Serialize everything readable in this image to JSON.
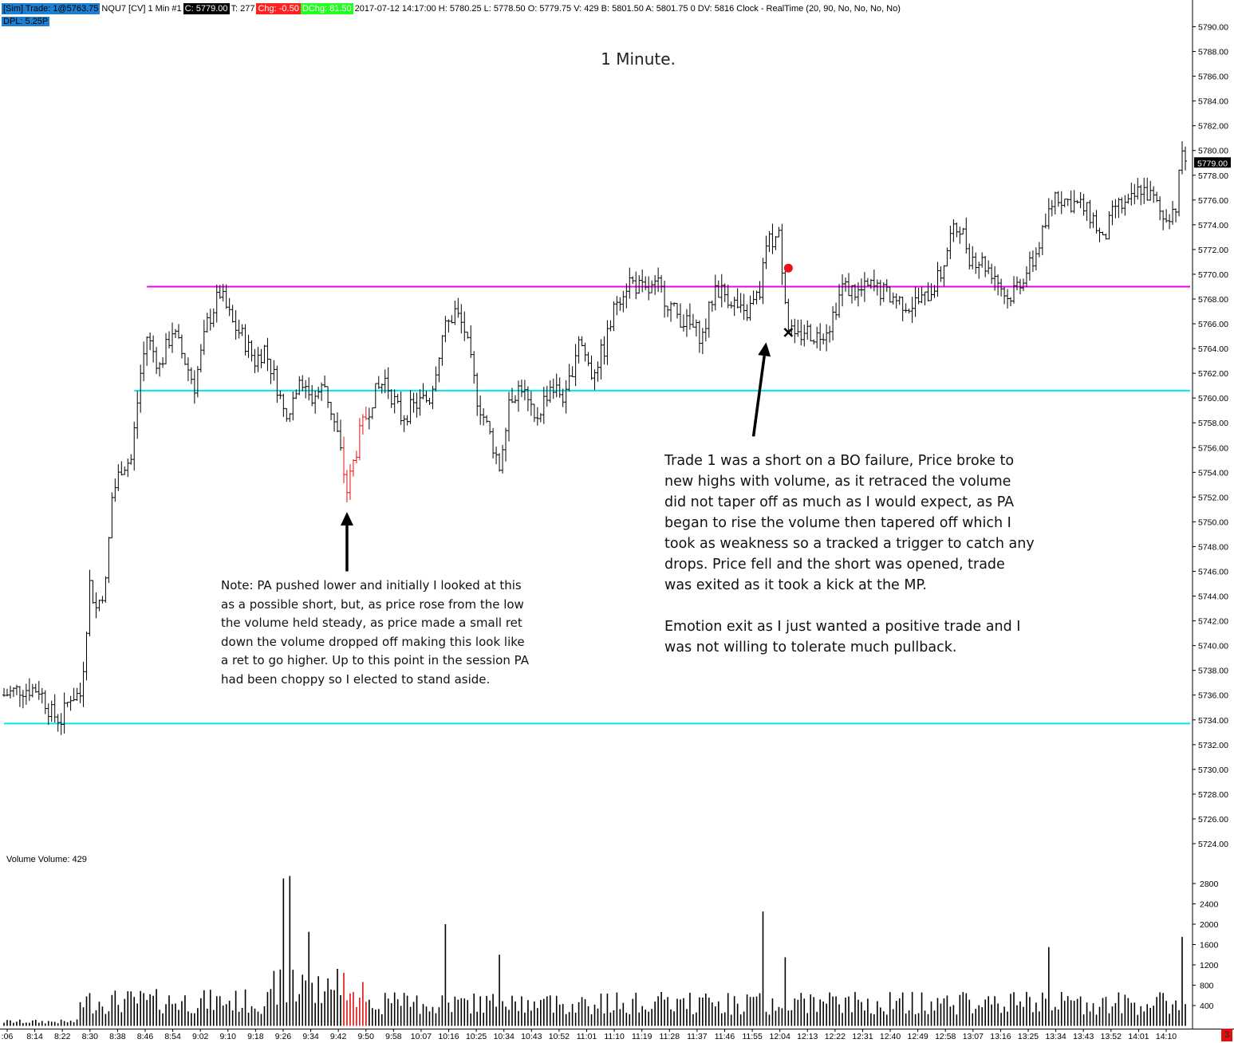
{
  "header": {
    "items": [
      {
        "text": "[Sim]  Trade: 1@5763.75",
        "bg": "#1e7fd0",
        "fg": "#000000"
      },
      {
        "text": "NQU7 [CV]  1 Min   #1",
        "bg": "#ffffff",
        "fg": "#000000"
      },
      {
        "text": "C: 5779.00",
        "bg": "#000000",
        "fg": "#ffffff"
      },
      {
        "text": "T: 277",
        "bg": "#ffffff",
        "fg": "#000000"
      },
      {
        "text": "Chg: -0.50",
        "bg": "#ff2020",
        "fg": "#ffffff"
      },
      {
        "text": "DChg: 81.50",
        "bg": "#22ff22",
        "fg": "#ffffff"
      },
      {
        "text": "2017-07-12 14:17:00  H: 5780.25  L: 5778.50  O: 5779.75  V: 429  B: 5801.50  A: 5801.75 0  DV: 5816  Clock - RealTime   (20, 90, No, No, No, No)",
        "bg": "#ffffff",
        "fg": "#000000"
      }
    ],
    "dpl": "DPL: 5.25P",
    "dpl_bg": "#1e7fd0"
  },
  "chart_data": {
    "type": "bar",
    "title": "1 Minute.",
    "instrument": "NQU7 [CV]",
    "interval": "1 Min",
    "price_axis": {
      "ticks": [
        5724,
        5726,
        5728,
        5730,
        5732,
        5734,
        5736,
        5738,
        5740,
        5742,
        5744,
        5746,
        5748,
        5750,
        5752,
        5754,
        5756,
        5758,
        5760,
        5762,
        5764,
        5766,
        5768,
        5770,
        5772,
        5774,
        5776,
        5778,
        5780,
        5782,
        5784,
        5786,
        5788,
        5790
      ],
      "tick_labels": [
        "5724.00",
        "5726.00",
        "5728.00",
        "5730.00",
        "5732.00",
        "5734.00",
        "5736.00",
        "5738.00",
        "5740.00",
        "5742.00",
        "5744.00",
        "5746.00",
        "5748.00",
        "5750.00",
        "5752.00",
        "5754.00",
        "5756.00",
        "5758.00",
        "5760.00",
        "5762.00",
        "5764.00",
        "5766.00",
        "5768.00",
        "5770.00",
        "5772.00",
        "5774.00",
        "5776.00",
        "5778.00",
        "5780.00",
        "5782.00",
        "5784.00",
        "5786.00",
        "5788.00",
        "5790.00"
      ],
      "range": [
        5722.5,
        5791.5
      ],
      "last_price_label": "5779.00",
      "last_price": 5779.0
    },
    "time_axis": {
      "labels": [
        ":06",
        "8:14",
        "8:22",
        "8:30",
        "8:38",
        "8:46",
        "8:54",
        "9:02",
        "9:10",
        "9:18",
        "9:26",
        "9:34",
        "9:42",
        "9:50",
        "9:58",
        "10:07",
        "10:16",
        "10:25",
        "10:34",
        "10:43",
        "10:52",
        "11:01",
        "11:10",
        "11:19",
        "11:28",
        "11:37",
        "11:46",
        "11:55",
        "12:04",
        "12:13",
        "12:22",
        "12:31",
        "12:40",
        "12:49",
        "12:58",
        "13:07",
        "13:16",
        "13:25",
        "13:34",
        "13:43",
        "13:52",
        "14:01",
        "14:10"
      ],
      "first_bar_time": "8:05",
      "last_bar_time": "14:17"
    },
    "price_path": [
      {
        "t": "8:05",
        "p": 5736.0
      },
      {
        "t": "8:10",
        "p": 5736.5
      },
      {
        "t": "8:16",
        "p": 5736.5
      },
      {
        "t": "8:20",
        "p": 5734.5
      },
      {
        "t": "8:23",
        "p": 5734.0
      },
      {
        "t": "8:26",
        "p": 5736.0
      },
      {
        "t": "8:29",
        "p": 5736.0
      },
      {
        "t": "8:30",
        "p": 5738.5
      },
      {
        "t": "8:32",
        "p": 5745.0
      },
      {
        "t": "8:34",
        "p": 5743.0
      },
      {
        "t": "8:37",
        "p": 5745.0
      },
      {
        "t": "8:39",
        "p": 5752.0
      },
      {
        "t": "8:42",
        "p": 5754.5
      },
      {
        "t": "8:45",
        "p": 5755.0
      },
      {
        "t": "8:48",
        "p": 5762.0
      },
      {
        "t": "8:50",
        "p": 5765.0
      },
      {
        "t": "8:54",
        "p": 5762.5
      },
      {
        "t": "8:58",
        "p": 5765.5
      },
      {
        "t": "9:02",
        "p": 5763.0
      },
      {
        "t": "9:05",
        "p": 5761.0
      },
      {
        "t": "9:09",
        "p": 5766.0
      },
      {
        "t": "9:13",
        "p": 5768.5
      },
      {
        "t": "9:17",
        "p": 5766.0
      },
      {
        "t": "9:20",
        "p": 5765.0
      },
      {
        "t": "9:24",
        "p": 5763.0
      },
      {
        "t": "9:27",
        "p": 5764.0
      },
      {
        "t": "9:31",
        "p": 5761.0
      },
      {
        "t": "9:34",
        "p": 5758.0
      },
      {
        "t": "9:38",
        "p": 5762.0
      },
      {
        "t": "9:42",
        "p": 5760.0
      },
      {
        "t": "9:46",
        "p": 5761.0
      },
      {
        "t": "9:50",
        "p": 5757.0
      },
      {
        "t": "9:53",
        "p": 5752.5
      },
      {
        "t": "9:57",
        "p": 5757.0
      },
      {
        "t": "10:01",
        "p": 5760.0
      },
      {
        "t": "10:05",
        "p": 5761.5
      },
      {
        "t": "10:10",
        "p": 5758.5
      },
      {
        "t": "10:15",
        "p": 5759.5
      },
      {
        "t": "10:19",
        "p": 5760.0
      },
      {
        "t": "10:23",
        "p": 5765.0
      },
      {
        "t": "10:27",
        "p": 5767.0
      },
      {
        "t": "10:30",
        "p": 5765.5
      },
      {
        "t": "10:34",
        "p": 5760.0
      },
      {
        "t": "10:38",
        "p": 5757.0
      },
      {
        "t": "10:41",
        "p": 5754.5
      },
      {
        "t": "10:44",
        "p": 5760.0
      },
      {
        "t": "10:48",
        "p": 5761.0
      },
      {
        "t": "10:52",
        "p": 5758.0
      },
      {
        "t": "10:57",
        "p": 5761.0
      },
      {
        "t": "11:02",
        "p": 5760.0
      },
      {
        "t": "11:06",
        "p": 5765.0
      },
      {
        "t": "11:10",
        "p": 5762.0
      },
      {
        "t": "11:14",
        "p": 5764.0
      },
      {
        "t": "11:18",
        "p": 5768.0
      },
      {
        "t": "11:22",
        "p": 5769.5
      },
      {
        "t": "11:27",
        "p": 5768.5
      },
      {
        "t": "11:31",
        "p": 5769.0
      },
      {
        "t": "11:36",
        "p": 5767.0
      },
      {
        "t": "11:40",
        "p": 5766.0
      },
      {
        "t": "11:45",
        "p": 5765.0
      },
      {
        "t": "11:49",
        "p": 5769.0
      },
      {
        "t": "11:54",
        "p": 5768.0
      },
      {
        "t": "11:58",
        "p": 5766.5
      },
      {
        "t": "12:03",
        "p": 5768.5
      },
      {
        "t": "12:05",
        "p": 5772.5
      },
      {
        "t": "12:09",
        "p": 5773.0
      },
      {
        "t": "12:12",
        "p": 5766.0
      },
      {
        "t": "12:14",
        "p": 5764.5
      },
      {
        "t": "12:17",
        "p": 5765.5
      },
      {
        "t": "12:21",
        "p": 5765.0
      },
      {
        "t": "12:25",
        "p": 5766.0
      },
      {
        "t": "12:29",
        "p": 5769.0
      },
      {
        "t": "12:34",
        "p": 5768.5
      },
      {
        "t": "12:38",
        "p": 5769.0
      },
      {
        "t": "12:42",
        "p": 5768.5
      },
      {
        "t": "12:46",
        "p": 5768.0
      },
      {
        "t": "12:50",
        "p": 5767.5
      },
      {
        "t": "12:55",
        "p": 5768.0
      },
      {
        "t": "13:00",
        "p": 5770.0
      },
      {
        "t": "13:03",
        "p": 5773.0
      },
      {
        "t": "13:06",
        "p": 5774.0
      },
      {
        "t": "13:09",
        "p": 5771.5
      },
      {
        "t": "13:13",
        "p": 5771.0
      },
      {
        "t": "13:17",
        "p": 5770.0
      },
      {
        "t": "13:21",
        "p": 5768.0
      },
      {
        "t": "13:25",
        "p": 5769.5
      },
      {
        "t": "13:29",
        "p": 5771.0
      },
      {
        "t": "13:33",
        "p": 5774.0
      },
      {
        "t": "13:36",
        "p": 5776.5
      },
      {
        "t": "13:39",
        "p": 5776.0
      },
      {
        "t": "13:44",
        "p": 5775.5
      },
      {
        "t": "13:48",
        "p": 5774.5
      },
      {
        "t": "13:51",
        "p": 5772.5
      },
      {
        "t": "13:55",
        "p": 5775.5
      },
      {
        "t": "13:59",
        "p": 5775.5
      },
      {
        "t": "14:03",
        "p": 5777.0
      },
      {
        "t": "14:07",
        "p": 5776.0
      },
      {
        "t": "14:10",
        "p": 5774.5
      },
      {
        "t": "14:14",
        "p": 5775.5
      },
      {
        "t": "14:16",
        "p": 5780.0
      },
      {
        "t": "14:17",
        "p": 5779.0
      }
    ],
    "volume": {
      "label": "Volume  Volume: 429",
      "tick_labels": [
        "400",
        "800",
        "1200",
        "1600",
        "2000",
        "2400",
        "2800"
      ],
      "ticks": [
        400,
        800,
        1200,
        1600,
        2000,
        2400,
        2800
      ],
      "range": [
        0,
        3000
      ],
      "spikes": [
        {
          "t": "9:33",
          "v": 2900
        },
        {
          "t": "9:35",
          "v": 2950
        },
        {
          "t": "9:41",
          "v": 1850
        },
        {
          "t": "10:24",
          "v": 2000
        },
        {
          "t": "10:41",
          "v": 1400
        },
        {
          "t": "12:04",
          "v": 2250
        },
        {
          "t": "12:11",
          "v": 1350
        },
        {
          "t": "13:34",
          "v": 1550
        },
        {
          "t": "14:16",
          "v": 1750
        }
      ],
      "last_volume": 429
    },
    "levels": [
      {
        "price": 5769.0,
        "from": "8:50",
        "color": "#ee00ee"
      },
      {
        "price": 5760.6,
        "from": "8:46",
        "color": "#00e5ee"
      },
      {
        "price": 5733.7,
        "from": "8:05",
        "color": "#00e5ee"
      }
    ],
    "red_bars": {
      "from": "9:52",
      "to": "9:59",
      "color": "#e01010"
    },
    "markers": [
      {
        "type": "entry-dot",
        "t": "12:12",
        "p": 5770.5,
        "color": "#ee1111"
      },
      {
        "type": "exit-x",
        "t": "12:12",
        "p": 5765.3,
        "color": "#000000"
      }
    ],
    "arrows": [
      {
        "from_t": "9:53",
        "from_p": 5746.0,
        "to_t": "9:53",
        "to_p": 5750.8
      },
      {
        "from_t": "12:01",
        "from_p": 5756.9,
        "to_t": "12:05",
        "to_p": 5764.5
      }
    ]
  },
  "annotations": {
    "note1": "Note:  PA pushed lower and initially I looked at this\nas a possible short, but, as price rose from the low\nthe volume held steady, as price made a small ret\ndown the volume dropped off making this look like\na ret to go higher.  Up to this point in the session PA\nhad been choppy so I elected to stand aside.",
    "note2": "Trade 1 was a short on a BO failure, Price broke to\nnew highs with volume, as it retraced the volume\ndid not taper off as much as I would expect, as PA\nbegan to rise the volume then tapered off which I\ntook as weakness so a tracked a trigger to catch any\ndrops.  Price fell and the short was opened, trade\nwas exited as it took a kick at the MP.\n\nEmotion exit as I just wanted a positive trade and I\nwas not willing to tolerate much pullback."
  },
  "corner_badge": "3"
}
